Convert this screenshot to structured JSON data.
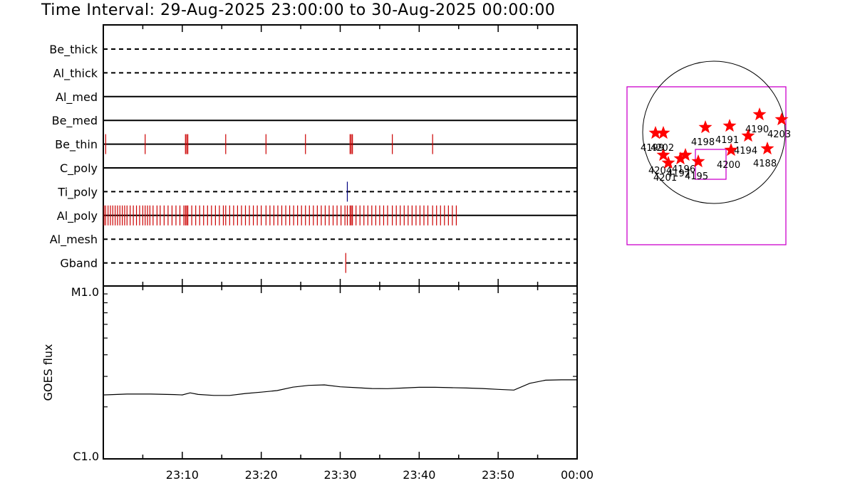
{
  "title": "Time Interval: 29-Aug-2025 23:00:00 to 30-Aug-2025 00:00:00",
  "chart_data": [
    {
      "type": "timeline",
      "x_range": [
        "23:00",
        "00:00"
      ],
      "x_tick_labels": [
        "23:10",
        "23:20",
        "23:30",
        "23:40",
        "23:50",
        "00:00"
      ],
      "event_color": "#cc0000",
      "channels": [
        {
          "name": "Be_thick",
          "line": "dashed",
          "events": []
        },
        {
          "name": "Al_thick",
          "line": "dashed",
          "events": []
        },
        {
          "name": "Al_med",
          "line": "solid",
          "events": []
        },
        {
          "name": "Be_med",
          "line": "solid",
          "events": []
        },
        {
          "name": "Be_thin",
          "line": "solid",
          "events": [
            0.3,
            5.3,
            10.4,
            10.55,
            10.7,
            15.5,
            20.6,
            25.6,
            31.25,
            31.4,
            31.55,
            36.6,
            41.7
          ]
        },
        {
          "name": "C_poly",
          "line": "solid",
          "events": []
        },
        {
          "name": "Ti_poly",
          "line": "dashed",
          "events": [
            30.9
          ],
          "event_color": "#000080"
        },
        {
          "name": "Al_poly",
          "line": "solid",
          "events": [
            0.1,
            0.3,
            0.6,
            0.9,
            1.2,
            1.5,
            1.8,
            2.1,
            2.4,
            2.7,
            3.0,
            3.4,
            3.8,
            4.2,
            4.6,
            5.0,
            5.3,
            5.6,
            5.9,
            6.3,
            6.8,
            7.2,
            7.7,
            8.2,
            8.7,
            9.2,
            9.7,
            10.2,
            10.4,
            10.55,
            10.7,
            11.2,
            11.7,
            12.2,
            12.7,
            13.2,
            13.7,
            14.2,
            14.7,
            15.2,
            15.5,
            16.0,
            16.5,
            17.0,
            17.5,
            18.0,
            18.5,
            19.0,
            19.5,
            20.0,
            20.6,
            21.1,
            21.6,
            22.1,
            22.6,
            23.1,
            23.6,
            24.1,
            24.6,
            25.1,
            25.6,
            26.1,
            26.6,
            27.1,
            27.6,
            28.1,
            28.6,
            29.1,
            29.6,
            30.1,
            30.6,
            30.9,
            31.25,
            31.4,
            31.55,
            32.0,
            32.5,
            33.0,
            33.5,
            34.0,
            34.5,
            35.0,
            35.5,
            36.0,
            36.6,
            37.1,
            37.6,
            38.1,
            38.6,
            39.1,
            39.6,
            40.1,
            40.6,
            41.1,
            41.7,
            42.2,
            42.7,
            43.2,
            43.7,
            44.2,
            44.7
          ]
        },
        {
          "name": "Al_mesh",
          "line": "dashed",
          "events": []
        },
        {
          "name": "Gband",
          "line": "dashed",
          "events": [
            30.7
          ]
        }
      ]
    },
    {
      "type": "line",
      "ylabel": "GOES flux",
      "y_tick_labels": [
        "M1.0",
        "C1.0"
      ],
      "ylim": [
        -6,
        -5
      ],
      "y_scale": "log",
      "x_tick_labels": [
        "23:10",
        "23:20",
        "23:30",
        "23:40",
        "23:50",
        "00:00"
      ],
      "series": [
        {
          "x_minutes": [
            0,
            3,
            6,
            9,
            10,
            11,
            12,
            14,
            16,
            18,
            20,
            22,
            24,
            26,
            28,
            30,
            32,
            34,
            36,
            38,
            40,
            42,
            44,
            46,
            48,
            50,
            52,
            54,
            56,
            58,
            60
          ],
          "y_log": [
            -5.63,
            -5.625,
            -5.625,
            -5.628,
            -5.63,
            -5.618,
            -5.627,
            -5.633,
            -5.633,
            -5.622,
            -5.614,
            -5.605,
            -5.585,
            -5.575,
            -5.572,
            -5.583,
            -5.588,
            -5.593,
            -5.594,
            -5.59,
            -5.586,
            -5.586,
            -5.588,
            -5.59,
            -5.593,
            -5.598,
            -5.602,
            -5.563,
            -5.545,
            -5.543,
            -5.543
          ]
        }
      ]
    },
    {
      "type": "scatter",
      "marker": "star",
      "color": "#ff0000",
      "points": [
        {
          "label": "4198"
        },
        {
          "label": "4191"
        },
        {
          "label": "4190"
        },
        {
          "label": "4203"
        },
        {
          "label": "4194"
        },
        {
          "label": "4188"
        },
        {
          "label": "4200"
        },
        {
          "label": "4204"
        },
        {
          "label": "4199"
        },
        {
          "label": "4202"
        },
        {
          "label": "4201"
        },
        {
          "label": "4196"
        },
        {
          "label": "4197"
        },
        {
          "label": "4195"
        }
      ]
    }
  ]
}
